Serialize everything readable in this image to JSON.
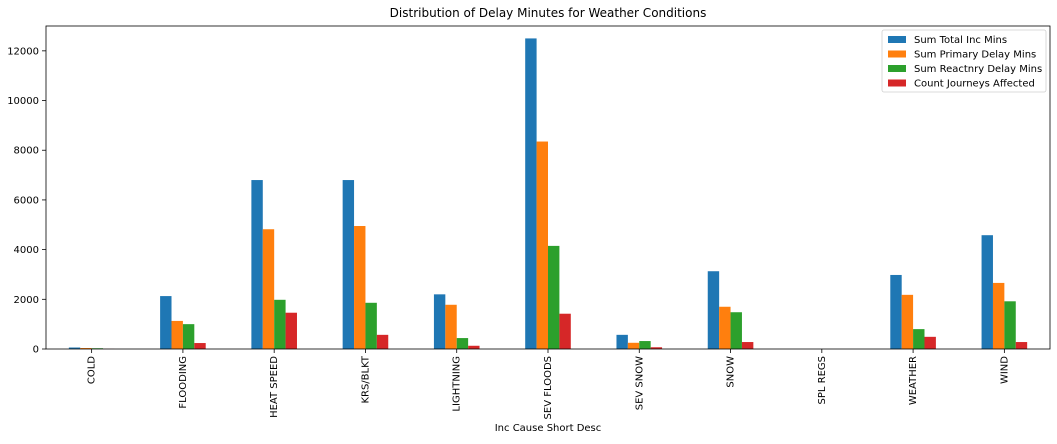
{
  "chart_data": {
    "type": "bar",
    "title": "Distribution of Delay Minutes for Weather Conditions",
    "xlabel": "Inc Cause Short Desc",
    "ylabel": "",
    "categories": [
      "COLD",
      "FLOODING",
      "HEAT SPEED",
      "KRS/BLKT",
      "LIGHTNING",
      "SEV FLOODS",
      "SEV SNOW",
      "SNOW",
      "SPL REGS",
      "WEATHER",
      "WIND"
    ],
    "series": [
      {
        "name": "Sum Total Inc Mins",
        "color": "#1f77b4",
        "values": [
          60,
          2130,
          6800,
          6800,
          2200,
          12500,
          570,
          3130,
          0,
          2980,
          4580
        ]
      },
      {
        "name": "Sum Primary Delay Mins",
        "color": "#ff7f0e",
        "values": [
          40,
          1130,
          4820,
          4950,
          1780,
          8350,
          250,
          1700,
          0,
          2180,
          2660
        ]
      },
      {
        "name": "Sum Reactnry Delay Mins",
        "color": "#2ca02c",
        "values": [
          30,
          1000,
          1980,
          1860,
          440,
          4150,
          320,
          1480,
          0,
          800,
          1920
        ]
      },
      {
        "name": "Count Journeys Affected",
        "color": "#d62728",
        "values": [
          5,
          240,
          1460,
          570,
          130,
          1420,
          70,
          280,
          0,
          490,
          280
        ]
      }
    ],
    "ylim": [
      0,
      13000
    ],
    "yticks": [
      0,
      2000,
      4000,
      6000,
      8000,
      10000,
      12000
    ],
    "grid": false,
    "legend_position": "top-right"
  }
}
